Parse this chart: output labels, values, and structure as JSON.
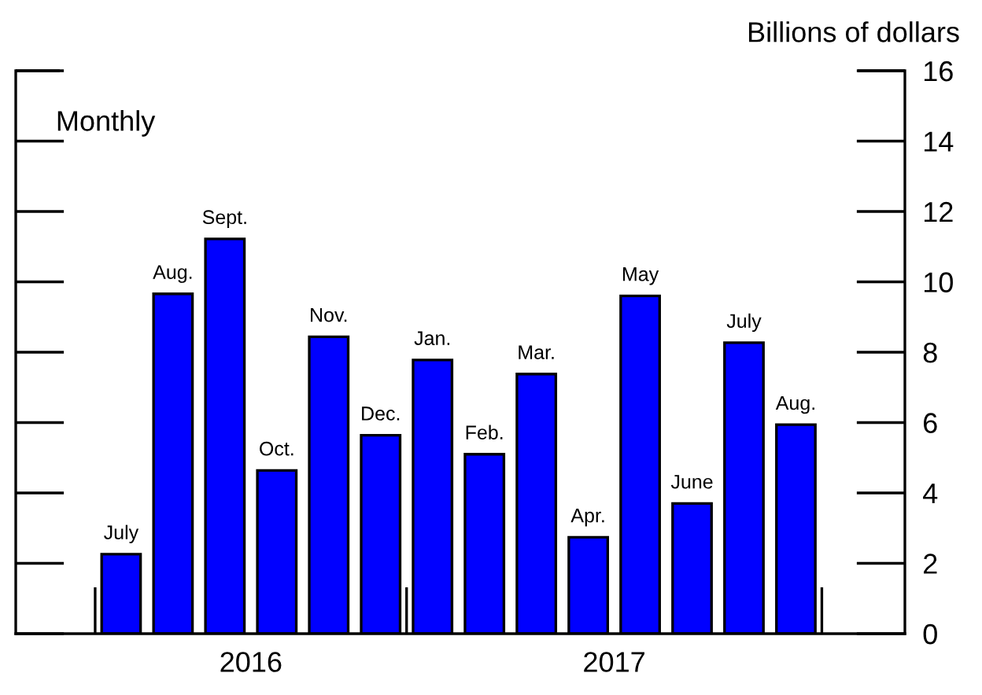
{
  "chart_data": {
    "type": "bar",
    "subtitle": "Monthly",
    "ylabel": "Billions of dollars",
    "categories": [
      "July",
      "Aug.",
      "Sept.",
      "Oct.",
      "Nov.",
      "Dec.",
      "Jan.",
      "Feb.",
      "Mar.",
      "Apr.",
      "May",
      "June",
      "July",
      "Aug."
    ],
    "values": [
      2.26,
      9.66,
      11.22,
      4.64,
      8.44,
      5.64,
      7.78,
      5.1,
      7.38,
      2.74,
      9.6,
      3.7,
      8.27,
      5.94
    ],
    "color": "#0000ff",
    "ylim": [
      0,
      16
    ],
    "yticks": [
      0,
      2,
      4,
      6,
      8,
      10,
      12,
      14,
      16
    ],
    "annotations": [
      "2016",
      "2017"
    ],
    "tick_labels": "y",
    "grid": false,
    "legend": false
  }
}
